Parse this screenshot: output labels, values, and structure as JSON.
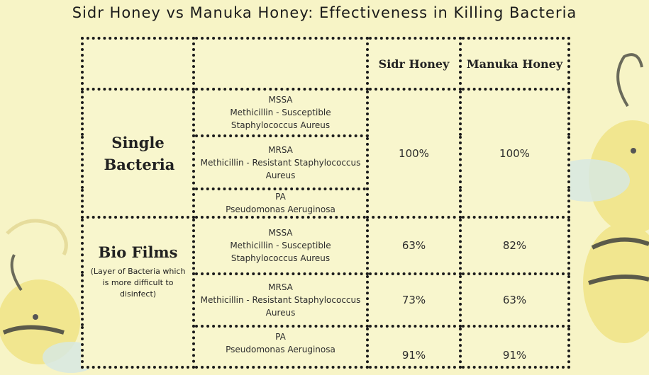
{
  "title": "Sidr Honey vs Manuka Honey: Effectiveness in Killing Bacteria",
  "header": {
    "corner": "",
    "bacteria": "",
    "sidr": "Sidr Honey",
    "manuka": "Manuka Honey"
  },
  "single_bacteria": {
    "label": "Single Bacteria",
    "rows": [
      {
        "abbr": "MSSA",
        "name": "Methicillin - Susceptible Staphylococcus Aureus"
      },
      {
        "abbr": "MRSA",
        "name": "Methicillin - Resistant Staphylococcus Aureus"
      },
      {
        "abbr": "PA",
        "name": "Pseudomonas Aeruginosa"
      }
    ],
    "sidr": "100%",
    "manuka": "100%"
  },
  "bio_films": {
    "label": "Bio Films",
    "note": "(Layer of Bacteria which is more difficult to disinfect)",
    "rows": [
      {
        "abbr": "MSSA",
        "name": "Methicillin - Susceptible Staphylococcus Aureus",
        "sidr": "63%",
        "manuka": "82%"
      },
      {
        "abbr": "MRSA",
        "name": "Methicillin - Resistant Staphylococcus Aureus",
        "sidr": "73%",
        "manuka": "63%"
      },
      {
        "abbr": "PA",
        "name": "Pseudomonas Aeruginosa",
        "sidr": "91%",
        "manuka": "91%"
      }
    ]
  },
  "colors": {
    "background": "#f7f4c6",
    "bee_yellow": "#f0e48a",
    "bee_blue": "#cfe3e6"
  }
}
